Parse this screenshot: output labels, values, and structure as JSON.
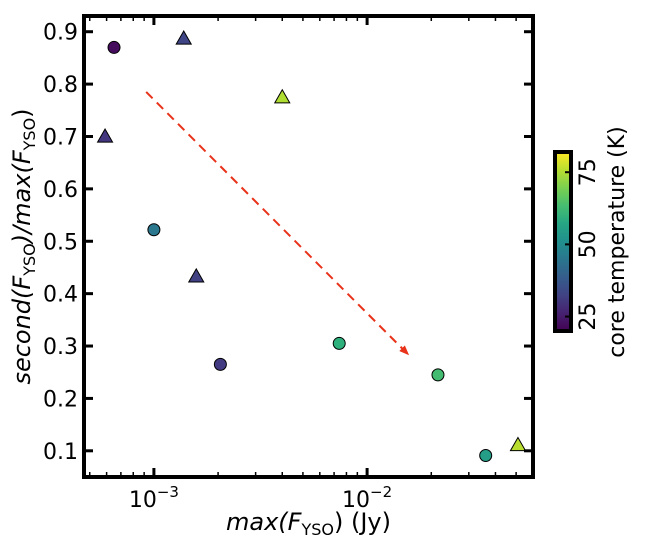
{
  "chart_data": {
    "type": "scatter",
    "title": "",
    "xlabel": {
      "pre": "max(F",
      "sub": "YSO",
      "post": ") (Jy)"
    },
    "ylabel": {
      "pre": "second(F",
      "sub": "YSO",
      "mid": ")/max(F",
      "sub2": "YSO",
      "post": ")"
    },
    "xscale": "log",
    "xlim": [
      0.00047,
      0.06
    ],
    "ylim": [
      0.05,
      0.93
    ],
    "grid": false,
    "x_ticks": [
      {
        "value": 0.001,
        "label": "10",
        "exp": "−3"
      },
      {
        "value": 0.01,
        "label": "10",
        "exp": "−2"
      }
    ],
    "y_ticks": [
      {
        "value": 0.1,
        "label": "0.1"
      },
      {
        "value": 0.2,
        "label": "0.2"
      },
      {
        "value": 0.3,
        "label": "0.3"
      },
      {
        "value": 0.4,
        "label": "0.4"
      },
      {
        "value": 0.5,
        "label": "0.5"
      },
      {
        "value": 0.6,
        "label": "0.6"
      },
      {
        "value": 0.7,
        "label": "0.7"
      },
      {
        "value": 0.8,
        "label": "0.8"
      },
      {
        "value": 0.9,
        "label": "0.9"
      }
    ],
    "colorbar": {
      "label": "core temperature (K)",
      "colormap": "viridis",
      "range": [
        20,
        82
      ],
      "ticks": [
        {
          "value": 25,
          "label": "25"
        },
        {
          "value": 50,
          "label": "50"
        },
        {
          "value": 75,
          "label": "75"
        }
      ]
    },
    "points": [
      {
        "x": 0.00065,
        "y": 0.87,
        "marker": "circle",
        "temp": 22
      },
      {
        "x": 0.00138,
        "y": 0.887,
        "marker": "triangle",
        "temp": 33
      },
      {
        "x": 0.00059,
        "y": 0.7,
        "marker": "triangle",
        "temp": 30
      },
      {
        "x": 0.004,
        "y": 0.775,
        "marker": "triangle",
        "temp": 75
      },
      {
        "x": 0.001,
        "y": 0.522,
        "marker": "circle",
        "temp": 45
      },
      {
        "x": 0.00158,
        "y": 0.433,
        "marker": "triangle",
        "temp": 32
      },
      {
        "x": 0.00205,
        "y": 0.265,
        "marker": "circle",
        "temp": 31
      },
      {
        "x": 0.0074,
        "y": 0.305,
        "marker": "circle",
        "temp": 60
      },
      {
        "x": 0.0215,
        "y": 0.245,
        "marker": "circle",
        "temp": 63
      },
      {
        "x": 0.036,
        "y": 0.091,
        "marker": "circle",
        "temp": 55
      },
      {
        "x": 0.051,
        "y": 0.111,
        "marker": "triangle",
        "temp": 76
      }
    ],
    "trend_arrow": {
      "from": [
        0.00092,
        0.785
      ],
      "to": [
        0.0155,
        0.285
      ],
      "color": "#e8321a",
      "style": "dashed"
    }
  }
}
